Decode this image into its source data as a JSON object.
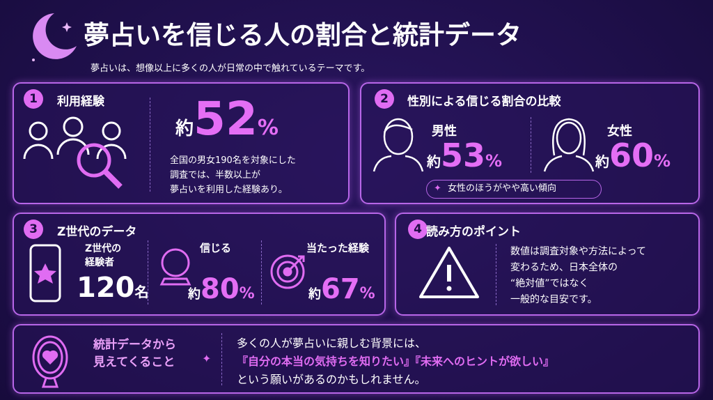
{
  "header": {
    "title": "夢占いを信じる人の割合と統計データ",
    "subtitle": "夢占いは、想像以上に多くの人が日常の中で触れているテーマです。"
  },
  "card1": {
    "number": "1",
    "title": "利用経験",
    "stat": {
      "prefix": "約",
      "value": "52",
      "unit": "%"
    },
    "lines": [
      "全国の男女190名を対象にした",
      "調査では、半数以上が",
      "夢占いを利用した経験あり。"
    ]
  },
  "card2": {
    "number": "2",
    "title": "性別による信じる割合の比較",
    "male": {
      "label": "男性",
      "prefix": "約",
      "value": "53",
      "unit": "%"
    },
    "female": {
      "label": "女性",
      "prefix": "約",
      "value": "60",
      "unit": "%"
    },
    "note": "女性のほうがやや高い傾向"
  },
  "card3": {
    "number": "3",
    "title": "Z世代のデータ",
    "items": [
      {
        "label": [
          "Z世代の",
          "経験者"
        ],
        "value": "120",
        "unit": "名"
      },
      {
        "label": [
          "信じる"
        ],
        "prefix": "約",
        "value": "80",
        "unit": "%"
      },
      {
        "label": [
          "当たった経験"
        ],
        "prefix": "約",
        "value": "67",
        "unit": "%"
      }
    ]
  },
  "card4": {
    "number": "4",
    "title": "読み方のポイント",
    "lines": [
      "数値は調査対象や方法によって",
      "変わるため、日本全体の",
      "“絶対値”ではなく",
      "一般的な目安です。"
    ]
  },
  "footer": {
    "label": [
      "統計データから",
      "見えてくること"
    ],
    "lines": [
      "多くの人が夢占いに親しむ背景には、",
      "『自分の本当の気持ちを知りたい』『未来へのヒントが欲しい』",
      "という願いがあるのかもしれません。"
    ]
  }
}
